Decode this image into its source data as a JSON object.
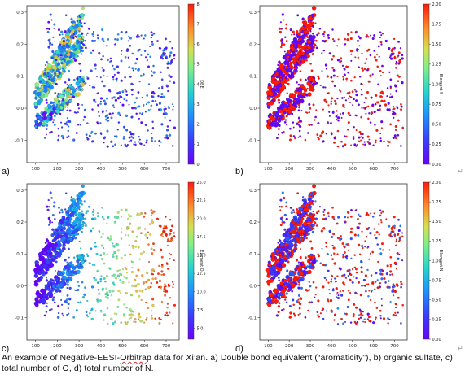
{
  "panels": [
    {
      "letter": "a)",
      "colorbar_label": "DBE",
      "colorbar_ticks": [
        "0",
        "1",
        "2",
        "3",
        "4",
        "5",
        "6",
        "7",
        "8"
      ],
      "colorbar_range": [
        0,
        8
      ],
      "colormap": "rainbow",
      "x_ticks": [
        "100",
        "200",
        "300",
        "400",
        "500",
        "600",
        "700"
      ],
      "y_ticks": [
        "0.3",
        "0.2",
        "0.1",
        "0.0",
        "-0.1"
      ]
    },
    {
      "letter": "b)",
      "colorbar_label": "Element S",
      "colorbar_ticks": [
        "0.00",
        "0.25",
        "0.50",
        "0.75",
        "1.00",
        "1.25",
        "1.50",
        "1.75",
        "2.00"
      ],
      "colorbar_range": [
        0,
        2
      ],
      "colormap": "rainbow",
      "x_ticks": [
        "100",
        "200",
        "300",
        "400",
        "500",
        "600",
        "700"
      ],
      "y_ticks": [
        "0.3",
        "0.2",
        "0.1",
        "0.0",
        "-0.1"
      ]
    },
    {
      "letter": "c)",
      "colorbar_label": "Element O",
      "colorbar_ticks": [
        "5.0",
        "7.5",
        "10.0",
        "12.5",
        "15.0",
        "17.5",
        "20.0",
        "22.5",
        "25.0"
      ],
      "colorbar_range": [
        3.5,
        25
      ],
      "colormap": "rainbow",
      "x_ticks": [
        "100",
        "200",
        "300",
        "400",
        "500",
        "600",
        "700"
      ],
      "y_ticks": [
        "0.3",
        "0.2",
        "0.1",
        "0.0",
        "-0.1"
      ]
    },
    {
      "letter": "d)",
      "colorbar_label": "Element N",
      "colorbar_ticks": [
        "0.00",
        "0.25",
        "0.50",
        "0.75",
        "1.00",
        "1.25",
        "1.50",
        "1.75",
        "2.00"
      ],
      "colorbar_range": [
        0,
        2
      ],
      "colormap": "rainbow",
      "x_ticks": [
        "100",
        "200",
        "300",
        "400",
        "500",
        "600",
        "700"
      ],
      "y_ticks": [
        "0.3",
        "0.2",
        "0.1",
        "0.0",
        "-0.1"
      ]
    }
  ],
  "caption": {
    "text_1": "An example of Negative-EESI-",
    "text_highlight": "Orbitrap",
    "text_2": " data for Xi’an. a) Double bond equivalent (“aromaticity”), b) organic sulfate, c) total number of O, d) total number of N."
  },
  "colors": {
    "frame": "#333333",
    "text": "#111111",
    "paragraph_mark": "#999999"
  }
}
